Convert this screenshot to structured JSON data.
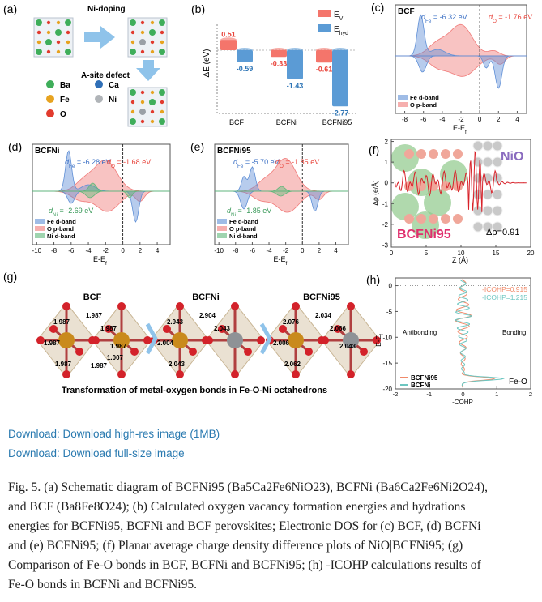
{
  "figure": {
    "a": {
      "label": "(a)",
      "arrow_top": "Ni-doping",
      "arrow_down": "A-site defect",
      "legend": [
        "Ba",
        "Ca",
        "Fe",
        "Ni",
        "O"
      ]
    },
    "b": {
      "label": "(b)",
      "ylabel": "ΔE (eV)",
      "categories": [
        "BCF",
        "BCFNi",
        "BCFNi95"
      ],
      "series": [
        {
          "name": {
            "base": "E",
            "sub": "V"
          },
          "color": "#f4756b",
          "label_color": "#e8433a",
          "values": [
            0.51,
            -0.33,
            -0.61
          ]
        },
        {
          "name": {
            "base": "E",
            "sub": "hyd"
          },
          "color": "#5b9bd5",
          "label_color": "#2e75b6",
          "values": [
            -0.59,
            -1.43,
            -2.77
          ]
        }
      ]
    },
    "c": {
      "label": "(c)",
      "title": "BCF",
      "annotations": [
        {
          "d": "d",
          "sub": "Fe",
          "rest": " = -6.32 eV",
          "color": "#3a6fc4"
        },
        {
          "d": "d",
          "sub": "O",
          "rest": " = -1.76 eV",
          "color": "#e8433a"
        }
      ],
      "legend": [
        "Fe d-band",
        "O p-band"
      ],
      "xlabel": {
        "base": "E-E",
        "sub": "f"
      },
      "xlim": [
        -9,
        5
      ],
      "xticks": [
        -8,
        -6,
        -4,
        -2,
        0,
        2,
        4
      ]
    },
    "d": {
      "label": "(d)",
      "title": "BCFNi",
      "annotations": [
        {
          "d": "d",
          "sub": "Fe",
          "rest": " = -6.28 eV",
          "color": "#3a6fc4"
        },
        {
          "d": "d",
          "sub": "O",
          "rest": " = -1.68 eV",
          "color": "#e8433a"
        },
        {
          "d": "d",
          "sub": "Ni",
          "rest": " = -2.69 eV",
          "color": "#3a9a5a"
        }
      ],
      "legend": [
        "Fe d-band",
        "O p-band",
        "Ni d-band"
      ],
      "xlabel": {
        "base": "E-E",
        "sub": "f"
      },
      "xlim": [
        -10.5,
        5.5
      ],
      "xticks": [
        -10,
        -8,
        -6,
        -4,
        -2,
        0,
        2,
        4
      ]
    },
    "e": {
      "label": "(e)",
      "title": "BCFNi95",
      "annotations": [
        {
          "d": "d",
          "sub": "Fe",
          "rest": " = -5.70 eV",
          "color": "#3a6fc4"
        },
        {
          "d": "d",
          "sub": "O",
          "rest": " = -1.85 eV",
          "color": "#e8433a"
        },
        {
          "d": "d",
          "sub": "Ni",
          "rest": " = -1.85 eV",
          "color": "#3a9a5a"
        }
      ],
      "legend": [
        "Fe d-band",
        "O p-band",
        "Ni d-band"
      ],
      "xlabel": {
        "base": "E-E",
        "sub": "f"
      },
      "xlim": [
        -10.5,
        5.5
      ],
      "xticks": [
        -10,
        -8,
        -6,
        -4,
        -2,
        0,
        2,
        4
      ]
    },
    "f": {
      "label": "(f)",
      "ylabel": "Δρ (e/Å)",
      "xlabel": "Z (Å)",
      "ylim": [
        -3.1,
        2.1
      ],
      "yticks": [
        2,
        1,
        0,
        -1,
        -2,
        -3
      ],
      "xlim": [
        0,
        20
      ],
      "xticks": [
        0,
        5,
        10,
        15,
        20
      ],
      "labels": [
        "NiO",
        "BCFNi95",
        "Δρ=0.91"
      ]
    },
    "g": {
      "label": "(g)",
      "structures": [
        {
          "name": "BCF",
          "bonds": [
            1.987,
            1.987,
            1.987,
            1.987,
            1.987,
            1.987,
            1.987,
            1.007
          ]
        },
        {
          "name": "BCFNi",
          "bonds": [
            2.943,
            2.904,
            2.004,
            2.043,
            2.043
          ]
        },
        {
          "name": "BCFNi95",
          "bonds": [
            2.076,
            2.034,
            2.006,
            2.062,
            2.066,
            2.043
          ]
        }
      ],
      "caption": "Transformation of metal-oxygen bonds in Fe-O-Ni octahedrons"
    },
    "h": {
      "label": "(h)",
      "ylabel": {
        "base": "E-E",
        "sub": "f"
      },
      "xlabel": "-COHP",
      "ylim": [
        -20,
        1.5
      ],
      "yticks": [
        0,
        -5,
        -10,
        -15,
        -20
      ],
      "xlim": [
        -2,
        2
      ],
      "xticks": [
        -2,
        -1,
        0,
        1,
        2
      ],
      "icohp": [
        "-ICOHP=0.915",
        "-ICOHP=1.215"
      ],
      "regions": [
        "Antibonding",
        "Bonding"
      ],
      "legend": [
        {
          "name": "BCFNi95",
          "color": "#f08a6a"
        },
        {
          "name": "BCFNi",
          "color": "#6cc6c0"
        }
      ],
      "bond": "Fe-O"
    }
  },
  "links": [
    "Download: Download high-res image (1MB)",
    "Download: Download full-size image"
  ],
  "caption": {
    "lines": [
      "Fig. 5. (a) Schematic diagram of BCFNi95 (Ba5Ca2Fe6NiO23), BCFNi (Ba6Ca2Fe6Ni2O24),",
      "and BCF (Ba8Fe8O24); (b) Calculated oxygen vacancy formation energies and hydrations",
      "energies for BCFNi95, BCFNi and BCF perovskites; Electronic DOS for (c) BCF, (d) BCFNi",
      "and (e) BCFNi95; (f) Planar average charge density difference plots of NiO|BCFNi95; (g)",
      "Comparison of Fe-O bonds in BCF, BCFNi and BCFNi95; (h) -ICOHP calculations results of",
      "Fe-O bonds in BCFNi and BCFNi95."
    ]
  }
}
